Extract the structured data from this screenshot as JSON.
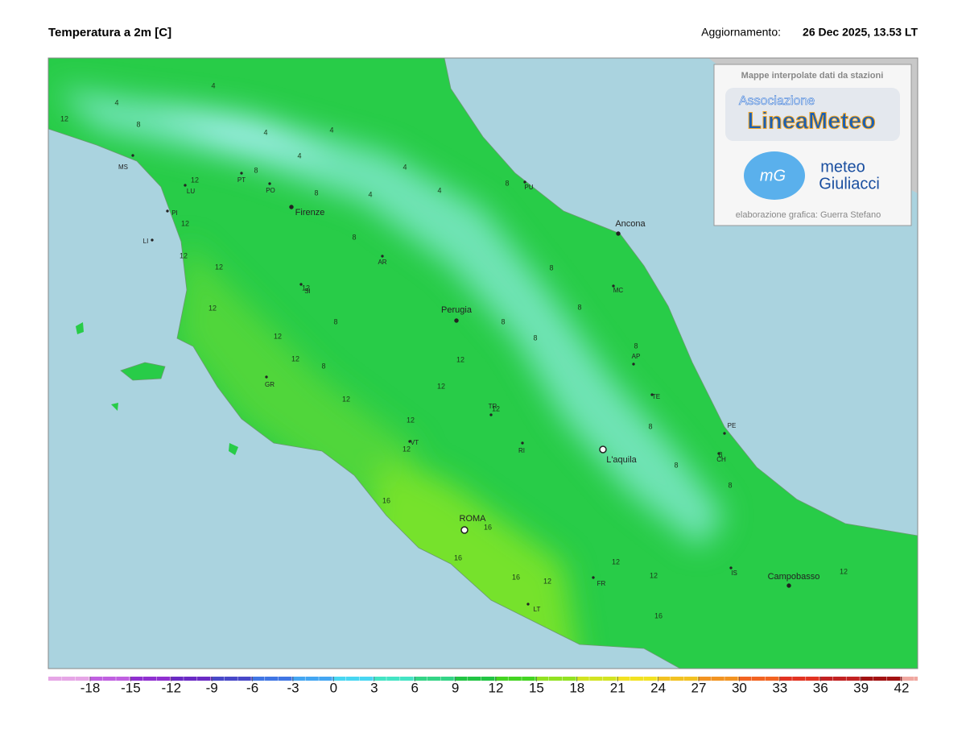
{
  "header": {
    "title": "Temperatura a 2m [C]",
    "update_label": "Aggiornamento:",
    "update_time": "26 Dec 2025, 13.53 LT"
  },
  "logo_box": {
    "caption": "Mappe interpolate dati da stazioni",
    "assoc": "Associazione",
    "brand": "LineaMeteo",
    "mg": "mG",
    "meteo": "meteo",
    "giuliacci": "Giuliacci",
    "credit": "elaborazione grafica: Guerra Stefano"
  },
  "places": [
    "MS",
    "LU",
    "PT",
    "PO",
    "PI",
    "LI",
    "Firenze",
    "AR",
    "SI",
    "Ancona",
    "MC",
    "PU",
    "Perugia",
    "GR",
    "TR",
    "VT",
    "RI",
    "AP",
    "TE",
    "PE",
    "CH",
    "L'aquila",
    "ROMA",
    "FR",
    "LT",
    "IS",
    "Campobasso"
  ],
  "contour_labels": [
    4,
    4,
    12,
    8,
    4,
    4,
    4,
    4,
    4,
    4,
    8,
    8,
    12,
    8,
    12,
    12,
    12,
    12,
    12,
    8,
    12,
    12,
    8,
    12,
    12,
    12,
    12,
    12,
    12,
    8,
    8,
    8,
    8,
    16,
    16,
    16,
    16,
    12,
    12,
    12,
    16,
    8,
    8,
    8,
    8,
    12,
    8,
    8
  ],
  "colorbar": {
    "ticks": [
      -18,
      -15,
      -12,
      -9,
      -6,
      -3,
      0,
      3,
      6,
      9,
      12,
      15,
      18,
      21,
      24,
      27,
      30,
      33,
      36,
      39,
      42
    ],
    "colors": [
      "#e6a6e6",
      "#c060e0",
      "#9030d0",
      "#6a2ac4",
      "#4848c8",
      "#4076e4",
      "#44a6f2",
      "#48d6f2",
      "#44e4c4",
      "#34d486",
      "#22c444",
      "#44d422",
      "#92e222",
      "#d2e422",
      "#f2e222",
      "#f2c222",
      "#f29422",
      "#f26422",
      "#e23422",
      "#c22222",
      "#a21212",
      "#f0a8a0"
    ]
  }
}
